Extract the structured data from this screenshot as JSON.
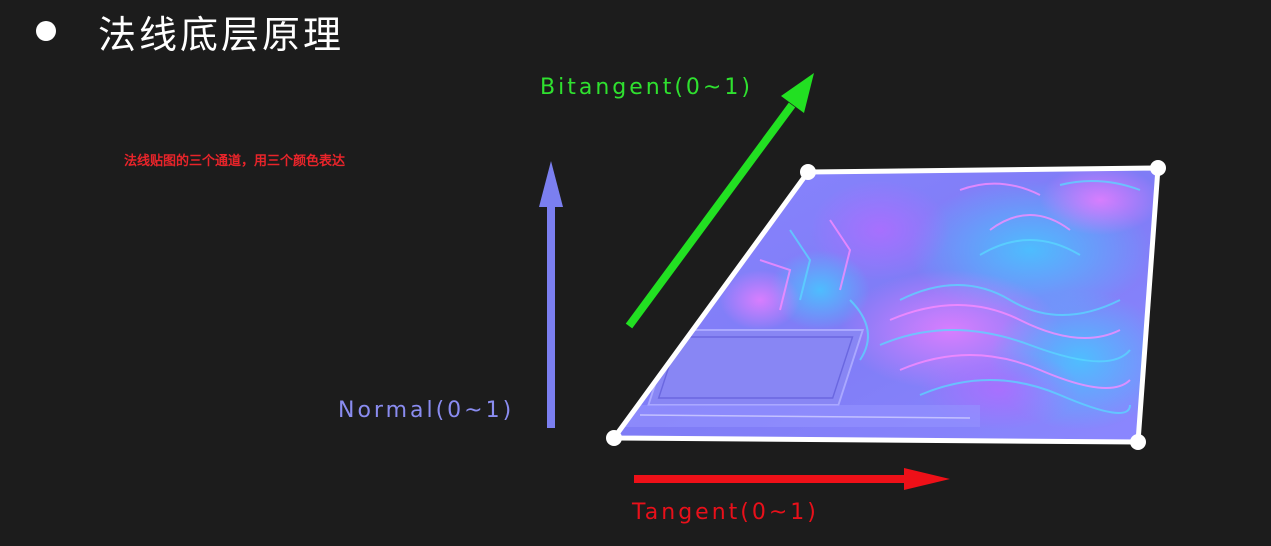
{
  "title": "法线底层原理",
  "note": "法线贴图的三个通道，用三个颜色表达",
  "axes": {
    "bitangent": {
      "label": "Bitangent(0~1)",
      "color": "#22e022"
    },
    "normal": {
      "label": "Normal(0~1)",
      "color": "#7b7ff0"
    },
    "tangent": {
      "label": "Tangent(0~1)",
      "color": "#ee1018"
    }
  },
  "plane": {
    "image": "normal-map-texture",
    "base_color": "#8080ff",
    "outline_color": "#ffffff"
  }
}
